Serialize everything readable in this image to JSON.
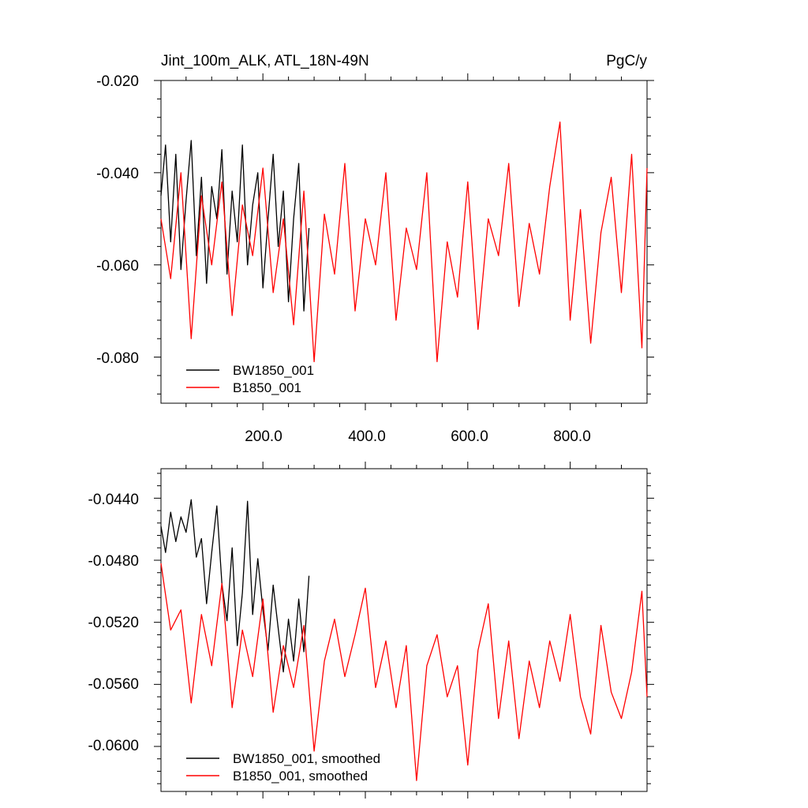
{
  "chart_data": [
    {
      "type": "line",
      "title": "Jint_100m_ALK, ATL_18N-49N",
      "units": "PgC/y",
      "xlim": [
        1,
        950
      ],
      "ylim": [
        -0.09,
        -0.02
      ],
      "xticks": [
        200,
        400,
        600,
        800
      ],
      "xtick_labels": [
        "200.0",
        "400.0",
        "600.0",
        "800.0"
      ],
      "yticks": [
        -0.08,
        -0.06,
        -0.04,
        -0.02
      ],
      "ytick_labels": [
        "-0.080",
        "-0.060",
        "-0.040",
        "-0.020"
      ],
      "legend_position": "bottom-left",
      "series": [
        {
          "name": "BW1850_001",
          "color": "#000000",
          "x": [
            1,
            10,
            20,
            30,
            40,
            50,
            60,
            70,
            80,
            90,
            100,
            110,
            120,
            130,
            140,
            150,
            160,
            170,
            180,
            190,
            200,
            210,
            220,
            230,
            240,
            250,
            260,
            270,
            280,
            290
          ],
          "y": [
            -0.045,
            -0.034,
            -0.055,
            -0.036,
            -0.061,
            -0.046,
            -0.033,
            -0.058,
            -0.041,
            -0.064,
            -0.043,
            -0.05,
            -0.035,
            -0.062,
            -0.044,
            -0.055,
            -0.034,
            -0.06,
            -0.047,
            -0.04,
            -0.065,
            -0.05,
            -0.036,
            -0.056,
            -0.044,
            -0.068,
            -0.05,
            -0.038,
            -0.07,
            -0.052
          ]
        },
        {
          "name": "B1850_001",
          "color": "#ff0000",
          "x": [
            1,
            20,
            40,
            60,
            80,
            100,
            120,
            140,
            160,
            180,
            200,
            220,
            240,
            260,
            280,
            300,
            320,
            340,
            360,
            380,
            400,
            420,
            440,
            460,
            480,
            500,
            520,
            540,
            560,
            580,
            600,
            620,
            640,
            660,
            680,
            700,
            720,
            740,
            760,
            780,
            800,
            820,
            840,
            860,
            880,
            900,
            920,
            940,
            950
          ],
          "y": [
            -0.05,
            -0.063,
            -0.04,
            -0.076,
            -0.045,
            -0.06,
            -0.042,
            -0.071,
            -0.047,
            -0.058,
            -0.039,
            -0.066,
            -0.05,
            -0.073,
            -0.044,
            -0.081,
            -0.049,
            -0.062,
            -0.038,
            -0.07,
            -0.05,
            -0.06,
            -0.04,
            -0.072,
            -0.052,
            -0.061,
            -0.04,
            -0.081,
            -0.055,
            -0.067,
            -0.042,
            -0.074,
            -0.05,
            -0.058,
            -0.038,
            -0.069,
            -0.051,
            -0.062,
            -0.043,
            -0.029,
            -0.072,
            -0.048,
            -0.077,
            -0.053,
            -0.041,
            -0.066,
            -0.036,
            -0.078,
            -0.039
          ]
        }
      ]
    },
    {
      "type": "line",
      "xlim": [
        1,
        950
      ],
      "ylim": [
        -0.0629,
        -0.0421
      ],
      "yticks": [
        -0.06,
        -0.056,
        -0.052,
        -0.048,
        -0.044
      ],
      "ytick_labels": [
        "-0.0600",
        "-0.0560",
        "-0.0520",
        "-0.0480",
        "-0.0440"
      ],
      "legend_position": "bottom-left",
      "series": [
        {
          "name": "BW1850_001, smoothed",
          "color": "#000000",
          "x": [
            1,
            10,
            20,
            30,
            40,
            50,
            60,
            70,
            80,
            90,
            100,
            110,
            120,
            130,
            140,
            150,
            160,
            170,
            180,
            190,
            200,
            210,
            220,
            230,
            240,
            250,
            260,
            270,
            280,
            290
          ],
          "y": [
            -0.0458,
            -0.0475,
            -0.0449,
            -0.0468,
            -0.0452,
            -0.0462,
            -0.0441,
            -0.0478,
            -0.0466,
            -0.0508,
            -0.0475,
            -0.0445,
            -0.0495,
            -0.0519,
            -0.0472,
            -0.0535,
            -0.0501,
            -0.0442,
            -0.0515,
            -0.0479,
            -0.0512,
            -0.0538,
            -0.0496,
            -0.0524,
            -0.0552,
            -0.0518,
            -0.0545,
            -0.0505,
            -0.0539,
            -0.049
          ]
        },
        {
          "name": "B1850_001, smoothed",
          "color": "#ff0000",
          "x": [
            1,
            20,
            40,
            60,
            80,
            100,
            120,
            140,
            160,
            180,
            200,
            220,
            240,
            260,
            280,
            300,
            320,
            340,
            360,
            380,
            400,
            420,
            440,
            460,
            480,
            500,
            520,
            540,
            560,
            580,
            600,
            620,
            640,
            660,
            680,
            700,
            720,
            740,
            760,
            780,
            800,
            820,
            840,
            860,
            880,
            900,
            920,
            940,
            950
          ],
          "y": [
            -0.0482,
            -0.0525,
            -0.0512,
            -0.0572,
            -0.0515,
            -0.0548,
            -0.0495,
            -0.0575,
            -0.0525,
            -0.0555,
            -0.0505,
            -0.0578,
            -0.0535,
            -0.0562,
            -0.0522,
            -0.0603,
            -0.0545,
            -0.0518,
            -0.0555,
            -0.0528,
            -0.0498,
            -0.0562,
            -0.0532,
            -0.0575,
            -0.0535,
            -0.0622,
            -0.0548,
            -0.0528,
            -0.0568,
            -0.0548,
            -0.0612,
            -0.0538,
            -0.0508,
            -0.0582,
            -0.0532,
            -0.0595,
            -0.0545,
            -0.0575,
            -0.0532,
            -0.0558,
            -0.0515,
            -0.0568,
            -0.0592,
            -0.0522,
            -0.0565,
            -0.0582,
            -0.0552,
            -0.05,
            -0.0568
          ]
        }
      ]
    }
  ]
}
